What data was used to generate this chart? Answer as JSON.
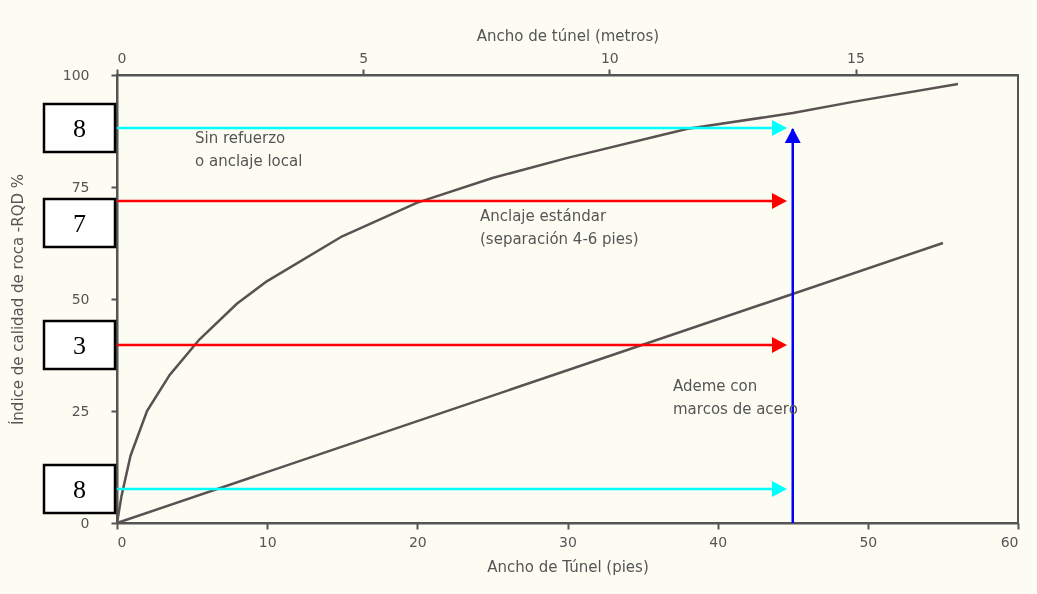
{
  "chart_data": {
    "type": "line",
    "xlabel": "Ancho de Túnel (pies)",
    "ylabel": "Índice de calidad de roca -RQD %",
    "x2label": "Ancho de túnel (metros)",
    "xlim": [
      0,
      60
    ],
    "xticks": [
      0,
      10,
      20,
      30,
      40,
      50,
      60
    ],
    "ylim": [
      0,
      100
    ],
    "yticks": [
      0,
      25,
      50,
      75,
      100
    ],
    "x2lim": [
      0,
      18.3
    ],
    "x2ticks": [
      0,
      5,
      10,
      15
    ],
    "series": [
      {
        "color": "#5a5252",
        "x": [
          0,
          0.3,
          0.9,
          2,
          3.5,
          5.5,
          8,
          10,
          15,
          20,
          25,
          30,
          38,
          45,
          49,
          56
        ],
        "values": [
          0,
          6,
          15,
          25,
          33,
          41,
          49,
          54,
          64,
          71.5,
          77,
          81.5,
          88,
          91.5,
          94,
          98
        ]
      },
      {
        "color": "#5a5252",
        "x": [
          0,
          55
        ],
        "values": [
          0,
          62.5
        ]
      }
    ],
    "annotations": [
      "8",
      "7",
      "3",
      "8",
      "Sin refuerzo\no anclaje local",
      "Anclaje estándar\n(separación 4-6 pies)",
      "Ademe con\nmarcos de acero"
    ],
    "ref_lines": [
      {
        "axis": "x",
        "value": 45,
        "color": "#0000ff"
      }
    ],
    "grid": false,
    "legend": false
  }
}
